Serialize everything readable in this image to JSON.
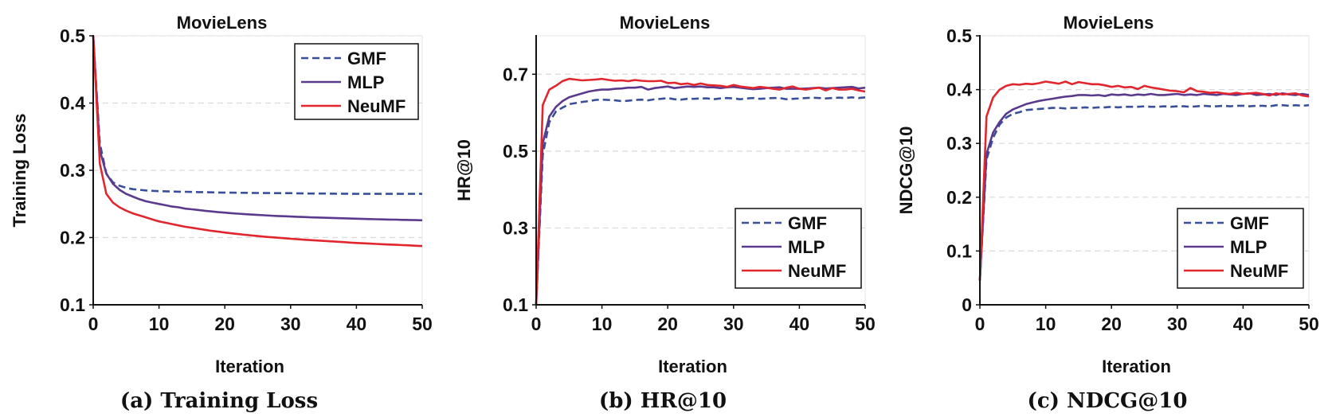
{
  "colors": {
    "GMF": "#3a4f9a",
    "MLP": "#5b3a8e",
    "NeuMF": "#e1262d",
    "axis": "#111111",
    "grid": "#d9d9d9"
  },
  "chart_data": [
    {
      "type": "line",
      "title": "MovieLens",
      "xlabel": "Iteration",
      "ylabel": "Training Loss",
      "caption": "(a) Training Loss",
      "xlim": [
        0,
        50
      ],
      "ylim": [
        0.1,
        0.5
      ],
      "xticks": [
        "0",
        "10",
        "20",
        "30",
        "40",
        "50"
      ],
      "yticks": [
        "0.1",
        "0.2",
        "0.3",
        "0.4",
        "0.5"
      ],
      "grid": "horizontal-dashed",
      "legend_position": "top-right",
      "x": [
        0,
        1,
        2,
        3,
        4,
        5,
        6,
        7,
        8,
        9,
        10,
        11,
        12,
        13,
        14,
        15,
        16,
        17,
        18,
        19,
        20,
        21,
        22,
        23,
        24,
        25,
        26,
        27,
        28,
        29,
        30,
        31,
        32,
        33,
        34,
        35,
        36,
        37,
        38,
        39,
        40,
        41,
        42,
        43,
        44,
        45,
        46,
        47,
        48,
        49,
        50
      ],
      "series": [
        {
          "name": "GMF",
          "style": "dashed",
          "values": [
            0.5,
            0.34,
            0.295,
            0.282,
            0.277,
            0.274,
            0.272,
            0.271,
            0.27,
            0.2695,
            0.269,
            0.2688,
            0.2685,
            0.2682,
            0.268,
            0.2678,
            0.2676,
            0.2674,
            0.2672,
            0.267,
            0.2668,
            0.2667,
            0.2666,
            0.2665,
            0.2664,
            0.2663,
            0.2662,
            0.2661,
            0.266,
            0.266,
            0.266,
            0.2658,
            0.2656,
            0.2655,
            0.2655,
            0.2654,
            0.2653,
            0.2652,
            0.2652,
            0.2651,
            0.265,
            0.265,
            0.265,
            0.265,
            0.265,
            0.265,
            0.265,
            0.265,
            0.265,
            0.265,
            0.265
          ]
        },
        {
          "name": "MLP",
          "style": "solid",
          "values": [
            0.5,
            0.33,
            0.295,
            0.28,
            0.271,
            0.265,
            0.261,
            0.257,
            0.254,
            0.252,
            0.25,
            0.248,
            0.246,
            0.245,
            0.243,
            0.242,
            0.241,
            0.2398,
            0.2388,
            0.2378,
            0.237,
            0.2362,
            0.2355,
            0.2348,
            0.2342,
            0.2336,
            0.2331,
            0.2326,
            0.2321,
            0.2317,
            0.2313,
            0.2309,
            0.2305,
            0.2301,
            0.2298,
            0.2295,
            0.2292,
            0.2289,
            0.2286,
            0.2283,
            0.228,
            0.2277,
            0.2275,
            0.2272,
            0.227,
            0.2268,
            0.2266,
            0.2263,
            0.2261,
            0.2259,
            0.2257
          ]
        },
        {
          "name": "NeuMF",
          "style": "solid",
          "values": [
            0.5,
            0.31,
            0.265,
            0.252,
            0.245,
            0.24,
            0.236,
            0.233,
            0.23,
            0.227,
            0.224,
            0.222,
            0.22,
            0.218,
            0.216,
            0.2145,
            0.213,
            0.2115,
            0.21,
            0.2088,
            0.2075,
            0.2063,
            0.2052,
            0.2042,
            0.2032,
            0.2022,
            0.2013,
            0.2005,
            0.1998,
            0.199,
            0.1982,
            0.1975,
            0.1968,
            0.1962,
            0.1956,
            0.195,
            0.1944,
            0.1938,
            0.1932,
            0.1926,
            0.192,
            0.1915,
            0.191,
            0.1905,
            0.19,
            0.1896,
            0.1892,
            0.1888,
            0.1884,
            0.1878,
            0.1873
          ]
        }
      ]
    },
    {
      "type": "line",
      "title": "MovieLens",
      "xlabel": "Iteration",
      "ylabel": "HR@10",
      "caption": "(b) HR@10",
      "xlim": [
        0,
        50
      ],
      "ylim": [
        0.1,
        0.8
      ],
      "xticks": [
        "0",
        "10",
        "20",
        "30",
        "40",
        "50"
      ],
      "yticks": [
        "0.1",
        "0.3",
        "0.5",
        "0.7"
      ],
      "ytick_values": [
        0.1,
        0.3,
        0.5,
        0.7
      ],
      "grid": "horizontal-dashed",
      "legend_position": "bottom-right",
      "x": [
        0,
        1,
        2,
        3,
        4,
        5,
        6,
        7,
        8,
        9,
        10,
        11,
        12,
        13,
        14,
        15,
        16,
        17,
        18,
        19,
        20,
        21,
        22,
        23,
        24,
        25,
        26,
        27,
        28,
        29,
        30,
        31,
        32,
        33,
        34,
        35,
        36,
        37,
        38,
        39,
        40,
        41,
        42,
        43,
        44,
        45,
        46,
        47,
        48,
        49,
        50
      ],
      "series": [
        {
          "name": "GMF",
          "style": "dashed",
          "values": [
            0.1,
            0.49,
            0.575,
            0.603,
            0.613,
            0.622,
            0.625,
            0.628,
            0.63,
            0.633,
            0.634,
            0.633,
            0.632,
            0.63,
            0.631,
            0.633,
            0.634,
            0.632,
            0.635,
            0.636,
            0.638,
            0.635,
            0.634,
            0.636,
            0.636,
            0.637,
            0.637,
            0.635,
            0.637,
            0.638,
            0.637,
            0.635,
            0.637,
            0.638,
            0.636,
            0.637,
            0.638,
            0.638,
            0.635,
            0.636,
            0.637,
            0.638,
            0.639,
            0.638,
            0.637,
            0.638,
            0.639,
            0.638,
            0.64,
            0.638,
            0.64
          ]
        },
        {
          "name": "MLP",
          "style": "solid",
          "values": [
            0.1,
            0.52,
            0.59,
            0.615,
            0.63,
            0.64,
            0.645,
            0.65,
            0.655,
            0.658,
            0.66,
            0.66,
            0.662,
            0.663,
            0.665,
            0.665,
            0.667,
            0.66,
            0.664,
            0.666,
            0.668,
            0.664,
            0.666,
            0.668,
            0.667,
            0.668,
            0.666,
            0.666,
            0.664,
            0.666,
            0.667,
            0.665,
            0.663,
            0.661,
            0.662,
            0.664,
            0.665,
            0.666,
            0.662,
            0.662,
            0.662,
            0.663,
            0.664,
            0.665,
            0.663,
            0.664,
            0.665,
            0.666,
            0.667,
            0.663,
            0.665
          ]
        },
        {
          "name": "NeuMF",
          "style": "solid",
          "values": [
            0.1,
            0.62,
            0.66,
            0.67,
            0.682,
            0.688,
            0.686,
            0.684,
            0.685,
            0.686,
            0.688,
            0.685,
            0.683,
            0.684,
            0.682,
            0.685,
            0.683,
            0.682,
            0.682,
            0.683,
            0.677,
            0.678,
            0.674,
            0.676,
            0.672,
            0.676,
            0.672,
            0.671,
            0.67,
            0.667,
            0.672,
            0.668,
            0.666,
            0.664,
            0.667,
            0.665,
            0.662,
            0.66,
            0.665,
            0.668,
            0.662,
            0.66,
            0.663,
            0.665,
            0.658,
            0.664,
            0.66,
            0.66,
            0.662,
            0.658,
            0.655
          ]
        }
      ]
    },
    {
      "type": "line",
      "title": "MovieLens",
      "xlabel": "Iteration",
      "ylabel": "NDCG@10",
      "caption": "(c) NDCG@10",
      "xlim": [
        0,
        50
      ],
      "ylim": [
        0,
        0.5
      ],
      "xticks": [
        "0",
        "10",
        "20",
        "30",
        "40",
        "50"
      ],
      "yticks": [
        "0",
        "0.1",
        "0.2",
        "0.3",
        "0.4",
        "0.5"
      ],
      "grid": "horizontal-dashed",
      "legend_position": "bottom-right",
      "x": [
        0,
        1,
        2,
        3,
        4,
        5,
        6,
        7,
        8,
        9,
        10,
        11,
        12,
        13,
        14,
        15,
        16,
        17,
        18,
        19,
        20,
        21,
        22,
        23,
        24,
        25,
        26,
        27,
        28,
        29,
        30,
        31,
        32,
        33,
        34,
        35,
        36,
        37,
        38,
        39,
        40,
        41,
        42,
        43,
        44,
        45,
        46,
        47,
        48,
        49,
        50
      ],
      "series": [
        {
          "name": "GMF",
          "style": "dashed",
          "values": [
            0.045,
            0.27,
            0.31,
            0.335,
            0.348,
            0.355,
            0.358,
            0.362,
            0.363,
            0.364,
            0.365,
            0.366,
            0.366,
            0.365,
            0.366,
            0.366,
            0.367,
            0.366,
            0.367,
            0.367,
            0.368,
            0.367,
            0.368,
            0.368,
            0.368,
            0.369,
            0.368,
            0.368,
            0.369,
            0.368,
            0.369,
            0.369,
            0.368,
            0.369,
            0.37,
            0.369,
            0.369,
            0.37,
            0.369,
            0.37,
            0.37,
            0.369,
            0.37,
            0.37,
            0.369,
            0.371,
            0.371,
            0.37,
            0.371,
            0.37,
            0.371
          ]
        },
        {
          "name": "MLP",
          "style": "solid",
          "values": [
            0.045,
            0.28,
            0.32,
            0.34,
            0.355,
            0.363,
            0.368,
            0.373,
            0.376,
            0.379,
            0.381,
            0.383,
            0.385,
            0.387,
            0.388,
            0.39,
            0.39,
            0.389,
            0.39,
            0.388,
            0.391,
            0.39,
            0.391,
            0.389,
            0.391,
            0.39,
            0.392,
            0.39,
            0.39,
            0.391,
            0.392,
            0.39,
            0.391,
            0.39,
            0.392,
            0.391,
            0.39,
            0.392,
            0.391,
            0.39,
            0.392,
            0.393,
            0.39,
            0.391,
            0.392,
            0.39,
            0.393,
            0.391,
            0.39,
            0.392,
            0.39
          ]
        },
        {
          "name": "NeuMF",
          "style": "solid",
          "values": [
            0.045,
            0.35,
            0.385,
            0.4,
            0.407,
            0.41,
            0.409,
            0.411,
            0.41,
            0.412,
            0.415,
            0.413,
            0.411,
            0.415,
            0.41,
            0.414,
            0.412,
            0.41,
            0.41,
            0.408,
            0.405,
            0.407,
            0.404,
            0.405,
            0.401,
            0.407,
            0.404,
            0.402,
            0.4,
            0.398,
            0.397,
            0.395,
            0.403,
            0.397,
            0.396,
            0.394,
            0.395,
            0.393,
            0.392,
            0.394,
            0.392,
            0.393,
            0.394,
            0.392,
            0.389,
            0.393,
            0.391,
            0.392,
            0.393,
            0.389,
            0.387
          ]
        }
      ]
    }
  ]
}
